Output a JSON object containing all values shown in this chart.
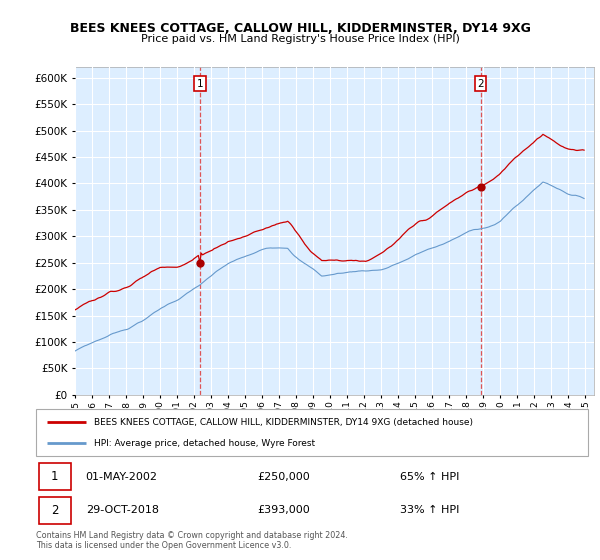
{
  "title": "BEES KNEES COTTAGE, CALLOW HILL, KIDDERMINSTER, DY14 9XG",
  "subtitle": "Price paid vs. HM Land Registry's House Price Index (HPI)",
  "legend_line1": "BEES KNEES COTTAGE, CALLOW HILL, KIDDERMINSTER, DY14 9XG (detached house)",
  "legend_line2": "HPI: Average price, detached house, Wyre Forest",
  "sale1_date": "01-MAY-2002",
  "sale1_price": 250000,
  "sale1_hpi": "65% ↑ HPI",
  "sale2_date": "29-OCT-2018",
  "sale2_price": 393000,
  "sale2_hpi": "33% ↑ HPI",
  "footer": "Contains HM Land Registry data © Crown copyright and database right 2024.\nThis data is licensed under the Open Government Licence v3.0.",
  "red_color": "#cc0000",
  "blue_color": "#6699cc",
  "fill_color": "#ddeeff",
  "vline_color": "#dd4444",
  "marker_color": "#aa0000",
  "ylim": [
    0,
    620000
  ],
  "yticks": [
    0,
    50000,
    100000,
    150000,
    200000,
    250000,
    300000,
    350000,
    400000,
    450000,
    500000,
    550000,
    600000
  ],
  "xlim_start": 1995.0,
  "xlim_end": 2025.5,
  "sale1_x": 2002.37,
  "sale2_x": 2018.83
}
